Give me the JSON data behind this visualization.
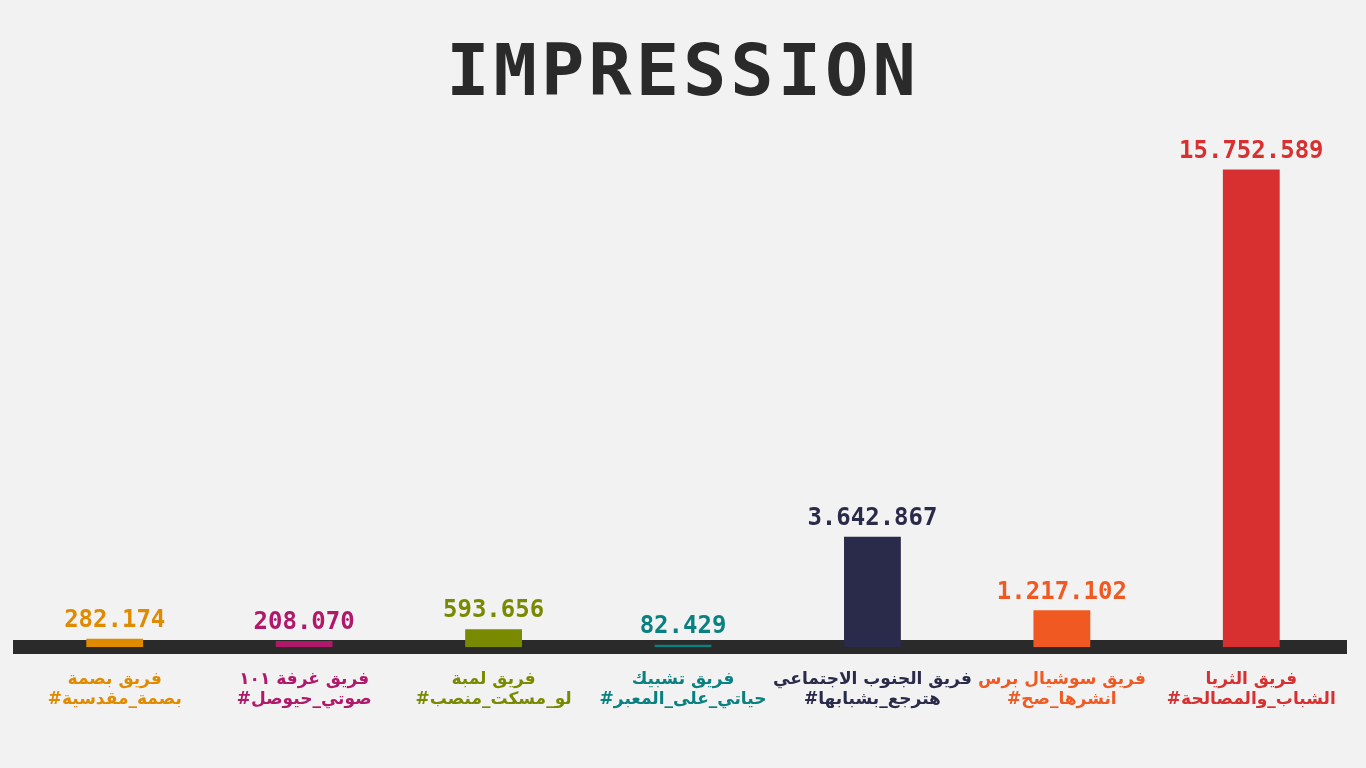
{
  "chart_data": {
    "type": "bar",
    "title": "IMPRESSION",
    "categories": [
      "فريق بصمة\n#بصمة_مقدسية",
      "فريق غرفة ١٠١\n#صوتي_حيوصل",
      "فريق لمبة\n#لو_مسكت_منصب",
      "فريق تشبيك\n#حياتي_على_المعبر",
      "فريق الجنوب الاجتماعي\n#هترجع_بشبابها",
      "فريق سوشيال برس\n#انشرها_صح",
      "فريق الثريا\n#الشباب_والمصالحة"
    ],
    "values": [
      282174,
      208070,
      593656,
      82429,
      3642867,
      1217102,
      15752589
    ],
    "value_labels": [
      "282.174",
      "208.070",
      "593.656",
      "82.429",
      "3.642.867",
      "1.217.102",
      "15.752.589"
    ],
    "colors": [
      "#e08a00",
      "#b0186a",
      "#7a8a00",
      "#0a8080",
      "#2a2a4a",
      "#f05a22",
      "#d83030"
    ],
    "tick_labels": "x",
    "grid": false,
    "legend": false
  }
}
